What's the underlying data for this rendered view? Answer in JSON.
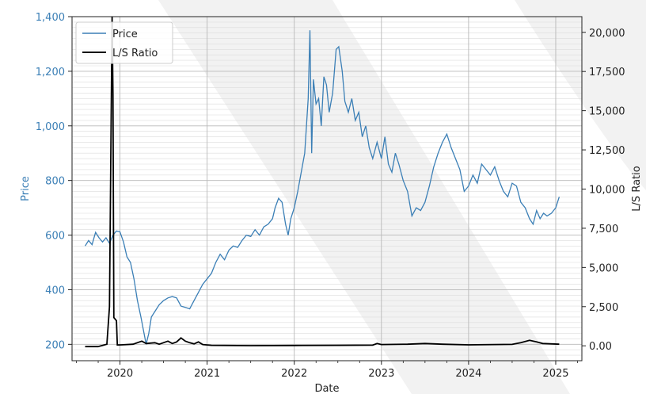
{
  "chart_data": {
    "type": "line",
    "xlabel": "Date",
    "ylabel_left": "Price",
    "ylabel_right": "L/S Ratio",
    "colors": {
      "price": "#3b7fb6",
      "ratio": "#000000",
      "left_axis_text": "#3b7fb6",
      "right_axis_text": "#222222",
      "grid": "#b8b8b8",
      "watermark": "#f2f2f2"
    },
    "grid": true,
    "legend_position": "top-left",
    "xlim": [
      2019.45,
      2025.3
    ],
    "x_ticks": [
      {
        "value": 2020,
        "label": "2020"
      },
      {
        "value": 2021,
        "label": "2021"
      },
      {
        "value": 2022,
        "label": "2022"
      },
      {
        "value": 2023,
        "label": "2023"
      },
      {
        "value": 2024,
        "label": "2024"
      },
      {
        "value": 2025,
        "label": "2025"
      }
    ],
    "ylim_left": [
      140,
      1400
    ],
    "y_ticks_left": [
      {
        "value": 200,
        "label": "200"
      },
      {
        "value": 400,
        "label": "400"
      },
      {
        "value": 600,
        "label": "600"
      },
      {
        "value": 800,
        "label": "800"
      },
      {
        "value": 1000,
        "label": "1,000"
      },
      {
        "value": 1200,
        "label": "1,200"
      },
      {
        "value": 1400,
        "label": "1,400"
      }
    ],
    "ylim_right": [
      -950,
      21000
    ],
    "y_ticks_right": [
      {
        "value": 0,
        "label": "0.00"
      },
      {
        "value": 2500,
        "label": "2,500"
      },
      {
        "value": 5000,
        "label": "5,000"
      },
      {
        "value": 7500,
        "label": "7,500"
      },
      {
        "value": 10000,
        "label": "10,000"
      },
      {
        "value": 12500,
        "label": "12,500"
      },
      {
        "value": 15000,
        "label": "15,000"
      },
      {
        "value": 17500,
        "label": "17,500"
      },
      {
        "value": 20000,
        "label": "20,000"
      }
    ],
    "series": [
      {
        "name": "Price",
        "axis": "left",
        "points": [
          [
            2019.6,
            560
          ],
          [
            2019.64,
            580
          ],
          [
            2019.68,
            565
          ],
          [
            2019.72,
            610
          ],
          [
            2019.76,
            590
          ],
          [
            2019.8,
            575
          ],
          [
            2019.84,
            590
          ],
          [
            2019.88,
            570
          ],
          [
            2019.92,
            600
          ],
          [
            2019.96,
            615
          ],
          [
            2020.0,
            612
          ],
          [
            2020.04,
            575
          ],
          [
            2020.08,
            520
          ],
          [
            2020.12,
            500
          ],
          [
            2020.16,
            440
          ],
          [
            2020.2,
            360
          ],
          [
            2020.24,
            300
          ],
          [
            2020.27,
            250
          ],
          [
            2020.3,
            200
          ],
          [
            2020.33,
            240
          ],
          [
            2020.36,
            300
          ],
          [
            2020.4,
            320
          ],
          [
            2020.45,
            345
          ],
          [
            2020.5,
            360
          ],
          [
            2020.55,
            370
          ],
          [
            2020.6,
            375
          ],
          [
            2020.65,
            370
          ],
          [
            2020.7,
            340
          ],
          [
            2020.75,
            335
          ],
          [
            2020.8,
            330
          ],
          [
            2020.85,
            360
          ],
          [
            2020.9,
            390
          ],
          [
            2020.95,
            420
          ],
          [
            2021.0,
            440
          ],
          [
            2021.05,
            460
          ],
          [
            2021.1,
            500
          ],
          [
            2021.15,
            530
          ],
          [
            2021.2,
            510
          ],
          [
            2021.25,
            545
          ],
          [
            2021.3,
            560
          ],
          [
            2021.35,
            555
          ],
          [
            2021.4,
            580
          ],
          [
            2021.45,
            600
          ],
          [
            2021.5,
            595
          ],
          [
            2021.55,
            620
          ],
          [
            2021.6,
            600
          ],
          [
            2021.65,
            630
          ],
          [
            2021.7,
            640
          ],
          [
            2021.75,
            660
          ],
          [
            2021.78,
            700
          ],
          [
            2021.82,
            735
          ],
          [
            2021.86,
            720
          ],
          [
            2021.9,
            640
          ],
          [
            2021.93,
            600
          ],
          [
            2021.96,
            660
          ],
          [
            2022.0,
            700
          ],
          [
            2022.04,
            760
          ],
          [
            2022.08,
            830
          ],
          [
            2022.12,
            900
          ],
          [
            2022.14,
            1000
          ],
          [
            2022.16,
            1100
          ],
          [
            2022.18,
            1350
          ],
          [
            2022.2,
            900
          ],
          [
            2022.22,
            1170
          ],
          [
            2022.25,
            1080
          ],
          [
            2022.28,
            1100
          ],
          [
            2022.31,
            1000
          ],
          [
            2022.34,
            1180
          ],
          [
            2022.37,
            1150
          ],
          [
            2022.4,
            1050
          ],
          [
            2022.44,
            1120
          ],
          [
            2022.48,
            1280
          ],
          [
            2022.51,
            1290
          ],
          [
            2022.55,
            1200
          ],
          [
            2022.58,
            1090
          ],
          [
            2022.62,
            1050
          ],
          [
            2022.66,
            1100
          ],
          [
            2022.7,
            1020
          ],
          [
            2022.74,
            1050
          ],
          [
            2022.78,
            960
          ],
          [
            2022.82,
            1000
          ],
          [
            2022.86,
            920
          ],
          [
            2022.9,
            880
          ],
          [
            2022.95,
            940
          ],
          [
            2023.0,
            880
          ],
          [
            2023.04,
            960
          ],
          [
            2023.08,
            860
          ],
          [
            2023.12,
            830
          ],
          [
            2023.16,
            900
          ],
          [
            2023.2,
            860
          ],
          [
            2023.25,
            800
          ],
          [
            2023.3,
            760
          ],
          [
            2023.35,
            670
          ],
          [
            2023.4,
            700
          ],
          [
            2023.45,
            690
          ],
          [
            2023.5,
            720
          ],
          [
            2023.55,
            780
          ],
          [
            2023.6,
            850
          ],
          [
            2023.65,
            900
          ],
          [
            2023.7,
            940
          ],
          [
            2023.75,
            970
          ],
          [
            2023.8,
            920
          ],
          [
            2023.85,
            880
          ],
          [
            2023.9,
            840
          ],
          [
            2023.95,
            760
          ],
          [
            2024.0,
            780
          ],
          [
            2024.05,
            820
          ],
          [
            2024.1,
            790
          ],
          [
            2024.15,
            860
          ],
          [
            2024.2,
            840
          ],
          [
            2024.25,
            820
          ],
          [
            2024.3,
            850
          ],
          [
            2024.35,
            800
          ],
          [
            2024.4,
            760
          ],
          [
            2024.45,
            740
          ],
          [
            2024.5,
            790
          ],
          [
            2024.55,
            780
          ],
          [
            2024.6,
            720
          ],
          [
            2024.65,
            700
          ],
          [
            2024.7,
            660
          ],
          [
            2024.74,
            640
          ],
          [
            2024.78,
            690
          ],
          [
            2024.82,
            660
          ],
          [
            2024.86,
            680
          ],
          [
            2024.9,
            670
          ],
          [
            2024.95,
            680
          ],
          [
            2025.0,
            700
          ],
          [
            2025.04,
            740
          ]
        ]
      },
      {
        "name": "L/S Ratio",
        "axis": "right",
        "points": [
          [
            2019.6,
            -50
          ],
          [
            2019.75,
            -50
          ],
          [
            2019.85,
            100
          ],
          [
            2019.88,
            2500
          ],
          [
            2019.9,
            15000
          ],
          [
            2019.91,
            21000
          ],
          [
            2019.92,
            16000
          ],
          [
            2019.93,
            1800
          ],
          [
            2019.96,
            1600
          ],
          [
            2019.97,
            50
          ],
          [
            2020.02,
            60
          ],
          [
            2020.15,
            100
          ],
          [
            2020.25,
            300
          ],
          [
            2020.3,
            150
          ],
          [
            2020.4,
            200
          ],
          [
            2020.45,
            100
          ],
          [
            2020.55,
            300
          ],
          [
            2020.6,
            150
          ],
          [
            2020.65,
            250
          ],
          [
            2020.7,
            500
          ],
          [
            2020.75,
            300
          ],
          [
            2020.8,
            200
          ],
          [
            2020.85,
            120
          ],
          [
            2020.9,
            250
          ],
          [
            2020.95,
            80
          ],
          [
            2021.05,
            30
          ],
          [
            2021.5,
            10
          ],
          [
            2022.0,
            20
          ],
          [
            2022.5,
            30
          ],
          [
            2022.9,
            40
          ],
          [
            2022.95,
            150
          ],
          [
            2023.0,
            80
          ],
          [
            2023.3,
            100
          ],
          [
            2023.5,
            150
          ],
          [
            2023.7,
            100
          ],
          [
            2024.0,
            60
          ],
          [
            2024.5,
            90
          ],
          [
            2024.6,
            200
          ],
          [
            2024.7,
            350
          ],
          [
            2024.78,
            250
          ],
          [
            2024.85,
            150
          ],
          [
            2025.04,
            100
          ]
        ]
      }
    ]
  }
}
